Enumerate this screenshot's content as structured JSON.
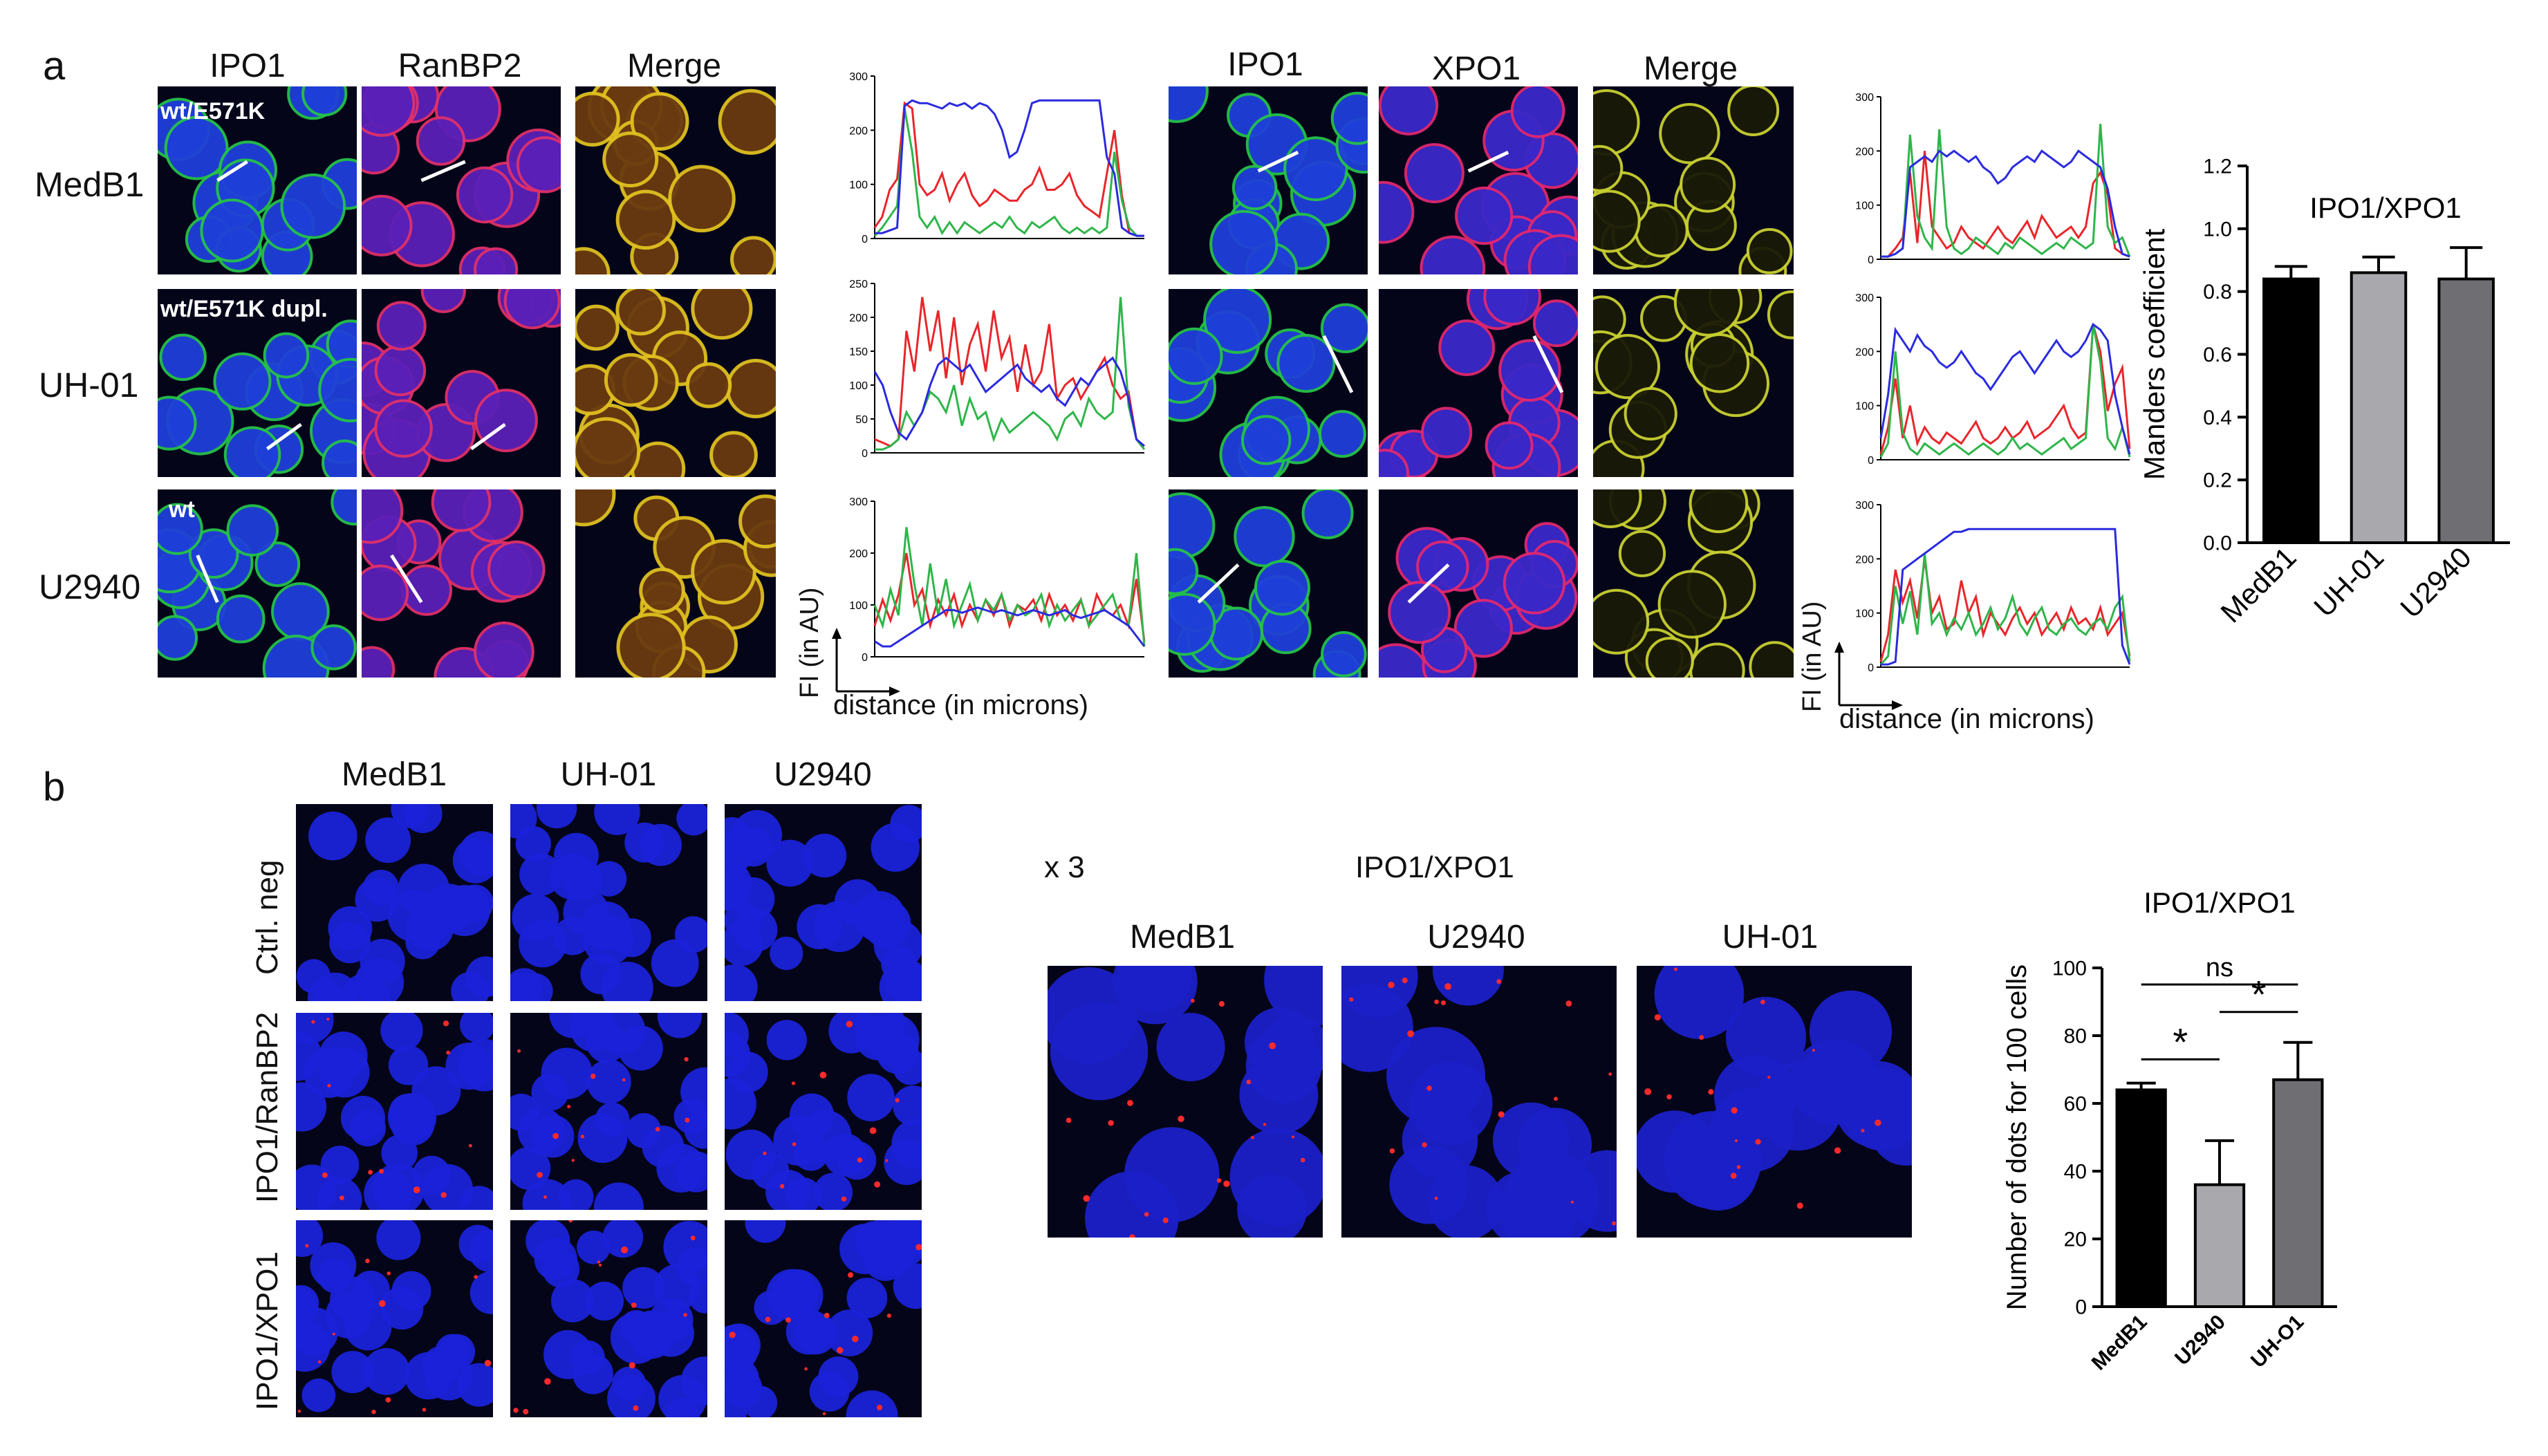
{
  "panel_a": {
    "letter": "a",
    "group1_cols": [
      "IPO1",
      "RanBP2",
      "Merge"
    ],
    "group2_cols": [
      "IPO1",
      "XPO1",
      "Merge"
    ],
    "rows": [
      "MedB1",
      "UH-01",
      "U2940"
    ],
    "genotypes": [
      "wt/E571K",
      "wt/E571K dupl.",
      "wt"
    ],
    "profile_ylabel": "FI (in AU)",
    "profile_xlabel": "distance (in microns)"
  },
  "panel_b": {
    "letter": "b",
    "cols": [
      "MedB1",
      "UH-01",
      "U2940"
    ],
    "rows": [
      "Ctrl. neg",
      "IPO1/RanBP2",
      "IPO1/XPO1"
    ],
    "zoom_label": "x 3",
    "zoom_title": "IPO1/XPO1",
    "zoom_cols": [
      "MedB1",
      "U2940",
      "UH-01"
    ]
  },
  "colors": {
    "red": "#e8262b",
    "green": "#2fb54a",
    "blue": "#2a2ae0",
    "bar_black": "#000000",
    "bar_lightgray": "#a9a9ad",
    "bar_gray": "#6f6f73"
  },
  "chart_data": [
    {
      "type": "line",
      "ylim": [
        0,
        300
      ],
      "yticks": [
        "0",
        "100",
        "200",
        "300"
      ],
      "series": [
        {
          "color": "red",
          "values": [
            20,
            40,
            90,
            110,
            250,
            240,
            100,
            80,
            90,
            120,
            70,
            100,
            120,
            80,
            60,
            70,
            90,
            80,
            70,
            70,
            90,
            100,
            130,
            90,
            90,
            100,
            120,
            80,
            60,
            50,
            40,
            120,
            200,
            80,
            10,
            5,
            5
          ]
        },
        {
          "color": "green",
          "values": [
            5,
            20,
            40,
            60,
            240,
            160,
            40,
            20,
            40,
            10,
            30,
            10,
            30,
            20,
            10,
            20,
            30,
            20,
            40,
            20,
            10,
            30,
            20,
            30,
            40,
            20,
            10,
            20,
            10,
            20,
            10,
            20,
            160,
            70,
            20,
            5,
            5
          ]
        },
        {
          "color": "blue",
          "values": [
            10,
            10,
            15,
            20,
            245,
            255,
            250,
            250,
            245,
            240,
            250,
            245,
            250,
            240,
            250,
            245,
            230,
            200,
            150,
            160,
            200,
            250,
            255,
            255,
            255,
            255,
            255,
            255,
            255,
            255,
            255,
            150,
            120,
            20,
            10,
            5,
            5
          ]
        }
      ]
    },
    {
      "type": "line",
      "ylim": [
        0,
        250
      ],
      "yticks": [
        "0",
        "50",
        "100",
        "150",
        "200",
        "250"
      ],
      "series": [
        {
          "color": "red",
          "values": [
            20,
            15,
            10,
            20,
            180,
            120,
            230,
            150,
            210,
            110,
            200,
            100,
            160,
            190,
            120,
            210,
            140,
            170,
            90,
            160,
            100,
            120,
            190,
            80,
            100,
            110,
            80,
            100,
            120,
            140,
            100,
            80,
            90,
            20,
            10
          ]
        },
        {
          "color": "green",
          "values": [
            5,
            5,
            10,
            20,
            60,
            40,
            60,
            90,
            80,
            60,
            100,
            40,
            80,
            50,
            60,
            20,
            50,
            30,
            40,
            50,
            60,
            50,
            40,
            20,
            50,
            60,
            40,
            80,
            60,
            50,
            60,
            230,
            70,
            20,
            5
          ]
        },
        {
          "color": "blue",
          "values": [
            120,
            100,
            60,
            30,
            20,
            40,
            60,
            100,
            130,
            140,
            130,
            120,
            130,
            110,
            90,
            100,
            110,
            120,
            130,
            110,
            100,
            90,
            100,
            80,
            70,
            90,
            110,
            100,
            120,
            130,
            140,
            120,
            80,
            20,
            10
          ]
        }
      ]
    },
    {
      "type": "line",
      "ylim": [
        0,
        300
      ],
      "yticks": [
        "0",
        "100",
        "200",
        "300"
      ],
      "series": [
        {
          "color": "red",
          "values": [
            60,
            110,
            70,
            120,
            200,
            100,
            130,
            60,
            110,
            80,
            120,
            60,
            100,
            70,
            110,
            80,
            120,
            60,
            100,
            90,
            110,
            70,
            120,
            80,
            100,
            70,
            110,
            60,
            120,
            90,
            80,
            100,
            60,
            150,
            30
          ]
        },
        {
          "color": "green",
          "values": [
            100,
            60,
            130,
            80,
            250,
            140,
            60,
            180,
            80,
            150,
            60,
            100,
            140,
            70,
            110,
            90,
            120,
            70,
            100,
            80,
            90,
            120,
            60,
            100,
            70,
            90,
            110,
            60,
            80,
            100,
            120,
            70,
            60,
            200,
            20
          ]
        },
        {
          "color": "blue",
          "values": [
            30,
            20,
            20,
            30,
            40,
            50,
            60,
            70,
            80,
            90,
            90,
            85,
            90,
            95,
            90,
            85,
            90,
            85,
            80,
            85,
            90,
            85,
            80,
            85,
            90,
            80,
            75,
            80,
            85,
            90,
            80,
            70,
            60,
            40,
            20
          ]
        }
      ]
    },
    {
      "type": "line",
      "ylim": [
        0,
        300
      ],
      "yticks": [
        "0",
        "100",
        "200",
        "300"
      ],
      "series": [
        {
          "color": "red",
          "values": [
            5,
            5,
            20,
            40,
            160,
            30,
            200,
            60,
            40,
            20,
            30,
            60,
            40,
            30,
            20,
            40,
            60,
            40,
            30,
            50,
            70,
            40,
            80,
            60,
            40,
            50,
            60,
            40,
            60,
            140,
            160,
            120,
            20,
            10,
            5
          ]
        },
        {
          "color": "green",
          "values": [
            5,
            5,
            10,
            20,
            230,
            80,
            40,
            20,
            240,
            60,
            20,
            10,
            20,
            40,
            30,
            20,
            10,
            30,
            20,
            40,
            30,
            20,
            10,
            20,
            30,
            20,
            40,
            30,
            20,
            30,
            250,
            60,
            30,
            40,
            5
          ]
        },
        {
          "color": "blue",
          "values": [
            5,
            5,
            10,
            20,
            170,
            180,
            190,
            180,
            200,
            190,
            200,
            190,
            180,
            190,
            170,
            160,
            140,
            150,
            170,
            180,
            190,
            180,
            200,
            190,
            180,
            170,
            180,
            200,
            190,
            180,
            170,
            130,
            60,
            10,
            5
          ]
        }
      ]
    },
    {
      "type": "line",
      "ylim": [
        0,
        300
      ],
      "yticks": [
        "0",
        "100",
        "200",
        "300"
      ],
      "series": [
        {
          "color": "red",
          "values": [
            10,
            60,
            150,
            40,
            100,
            30,
            60,
            40,
            30,
            50,
            40,
            30,
            50,
            70,
            40,
            30,
            40,
            60,
            40,
            50,
            70,
            40,
            50,
            60,
            80,
            100,
            60,
            40,
            50,
            250,
            200,
            90,
            140,
            170,
            20
          ]
        },
        {
          "color": "green",
          "values": [
            5,
            30,
            200,
            50,
            20,
            10,
            30,
            20,
            10,
            20,
            30,
            20,
            10,
            20,
            30,
            20,
            10,
            20,
            40,
            20,
            30,
            20,
            10,
            20,
            30,
            40,
            20,
            30,
            40,
            250,
            180,
            40,
            20,
            60,
            5
          ]
        },
        {
          "color": "blue",
          "values": [
            40,
            120,
            240,
            220,
            200,
            230,
            210,
            200,
            180,
            170,
            180,
            200,
            180,
            160,
            150,
            130,
            150,
            170,
            190,
            200,
            180,
            160,
            180,
            200,
            220,
            200,
            190,
            200,
            220,
            250,
            240,
            220,
            120,
            60,
            10
          ]
        }
      ]
    },
    {
      "type": "line",
      "ylim": [
        0,
        300
      ],
      "yticks": [
        "0",
        "100",
        "200",
        "300"
      ],
      "series": [
        {
          "color": "red",
          "values": [
            10,
            60,
            180,
            120,
            160,
            90,
            200,
            100,
            130,
            70,
            80,
            160,
            100,
            130,
            60,
            100,
            80,
            60,
            90,
            110,
            80,
            100,
            60,
            80,
            100,
            70,
            110,
            80,
            90,
            70,
            110,
            60,
            80,
            100,
            20
          ]
        },
        {
          "color": "green",
          "values": [
            5,
            20,
            150,
            80,
            140,
            60,
            210,
            80,
            100,
            60,
            90,
            70,
            100,
            60,
            80,
            110,
            70,
            90,
            130,
            80,
            60,
            90,
            110,
            70,
            60,
            80,
            90,
            70,
            60,
            80,
            90,
            70,
            110,
            130,
            10
          ]
        },
        {
          "color": "blue",
          "values": [
            5,
            5,
            10,
            180,
            190,
            200,
            210,
            220,
            230,
            240,
            250,
            250,
            255,
            255,
            255,
            255,
            255,
            255,
            255,
            255,
            255,
            255,
            255,
            255,
            255,
            255,
            255,
            255,
            255,
            255,
            255,
            255,
            255,
            40,
            5
          ]
        }
      ]
    },
    {
      "type": "bar",
      "title": "IPO1/XPO1",
      "ylabel": "Manders coefficient",
      "categories": [
        "MedB1",
        "UH-01",
        "U2940"
      ],
      "values": [
        0.84,
        0.86,
        0.84
      ],
      "errors": [
        0.04,
        0.05,
        0.1
      ],
      "ylim": [
        0,
        1.2
      ],
      "yticks": [
        "0.0",
        "0.2",
        "0.4",
        "0.6",
        "0.8",
        "1.0",
        "1.2"
      ]
    },
    {
      "type": "bar",
      "title": "IPO1/XPO1",
      "ylabel": "Number of dots for 100 cells",
      "categories": [
        "MedB1",
        "U2940",
        "UH-O1"
      ],
      "values": [
        64,
        36,
        67
      ],
      "errors": [
        2,
        13,
        11
      ],
      "ylim": [
        0,
        100
      ],
      "yticks": [
        "0",
        "20",
        "40",
        "60",
        "80",
        "100"
      ],
      "annotations": [
        "ns",
        "*",
        "*"
      ]
    }
  ]
}
